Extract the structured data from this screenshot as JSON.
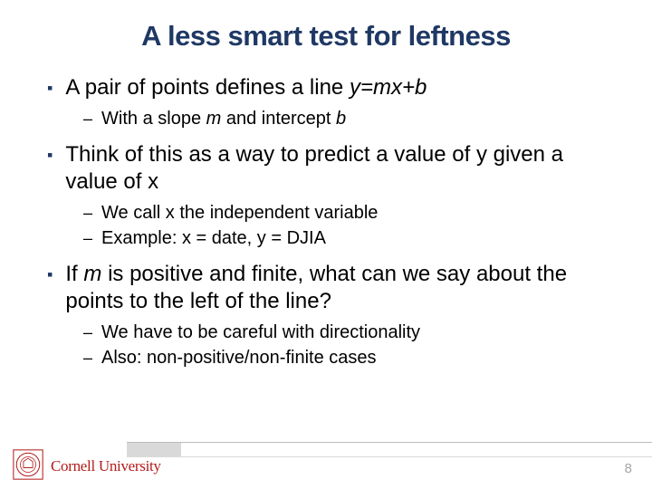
{
  "title": "A less smart test for leftness",
  "colors": {
    "title": "#1f3864",
    "bullet_marker": "#1f3864",
    "body_text": "#000000",
    "footer_rule": "#bcbcbc",
    "footer_bar": "#d9d9d9",
    "wordmark": "#b31b1b",
    "pagenum": "#a6a6a6",
    "background": "#ffffff"
  },
  "typography": {
    "title_fontsize": 31,
    "bullet_fontsize": 24,
    "sub_fontsize": 20,
    "title_weight": "bold",
    "body_family": "Verdana"
  },
  "bullets": [
    {
      "runs": [
        {
          "t": "A pair of points defines a line ",
          "i": false
        },
        {
          "t": "y=mx+b",
          "i": true
        }
      ],
      "subs": [
        {
          "runs": [
            {
              "t": "With a slope ",
              "i": false
            },
            {
              "t": "m",
              "i": true
            },
            {
              "t": " and intercept ",
              "i": false
            },
            {
              "t": "b",
              "i": true
            }
          ]
        }
      ]
    },
    {
      "runs": [
        {
          "t": "Think of this as a way to predict a value of y given a value of x",
          "i": false
        }
      ],
      "subs": [
        {
          "runs": [
            {
              "t": "We call x the independent variable",
              "i": false
            }
          ]
        },
        {
          "runs": [
            {
              "t": "Example: x = date, y = DJIA",
              "i": false
            }
          ]
        }
      ]
    },
    {
      "runs": [
        {
          "t": "If ",
          "i": false
        },
        {
          "t": "m",
          "i": true
        },
        {
          "t": " is positive and finite, what can we say about the points to the left of the line?",
          "i": false
        }
      ],
      "subs": [
        {
          "runs": [
            {
              "t": "We have to be careful with directionality",
              "i": false
            }
          ]
        },
        {
          "runs": [
            {
              "t": "Also: non-positive/non-finite cases",
              "i": false
            }
          ]
        }
      ]
    }
  ],
  "footer": {
    "wordmark": "Cornell University",
    "page_number": "8"
  }
}
